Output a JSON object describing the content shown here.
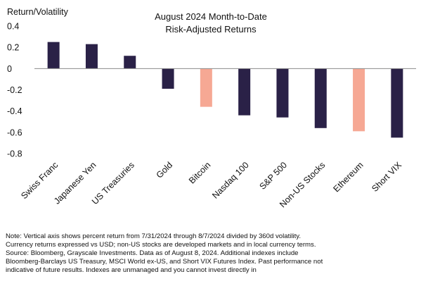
{
  "chart_data": {
    "type": "bar",
    "title_lines": [
      "August 2024 Month-to-Date",
      "Risk-Adjusted Returns"
    ],
    "ylabel": "Return/Volatility",
    "xlabel": "",
    "ylim": [
      -0.8,
      0.4
    ],
    "yticks": [
      0.4,
      0.2,
      0,
      -0.2,
      -0.4,
      -0.6,
      -0.8
    ],
    "ytick_labels": [
      "0.4",
      "0.2",
      "0",
      "-0.2",
      "-0.4",
      "-0.6",
      "-0.8"
    ],
    "grid": false,
    "categories": [
      "Swiss Franc",
      "Japanese Yen",
      "US Treasuries",
      "Gold",
      "Bitcoin",
      "Nasdaq 100",
      "S&P 500",
      "Non-US Stocks",
      "Ethereum",
      "Short VIX"
    ],
    "values": [
      0.25,
      0.23,
      0.12,
      -0.19,
      -0.36,
      -0.44,
      -0.46,
      -0.56,
      -0.59,
      -0.65
    ],
    "highlight_categories": [
      "Bitcoin",
      "Ethereum"
    ],
    "colors": {
      "default": "#2a2147",
      "highlight": "#f6a894",
      "axis": "#8c8c8c",
      "text": "#111111"
    }
  },
  "note": {
    "lines": [
      "Note: Vertical axis shows percent return from 7/31/2024 through 8/7/2024 divided by 360d volatility.",
      "Currency returns expressed vs USD; non-US stocks are developed markets and in local currency terms.",
      "Source: Bloomberg, Grayscale Investments. Data as of August 8, 2024. Additional indexes include",
      "Bloomberg-Barclays US Treasury, MSCI World ex-US, and Short VIX Futures Index. Past performance not",
      "indicative of future results. Indexes are unmanaged and you cannot invest directly in"
    ]
  }
}
